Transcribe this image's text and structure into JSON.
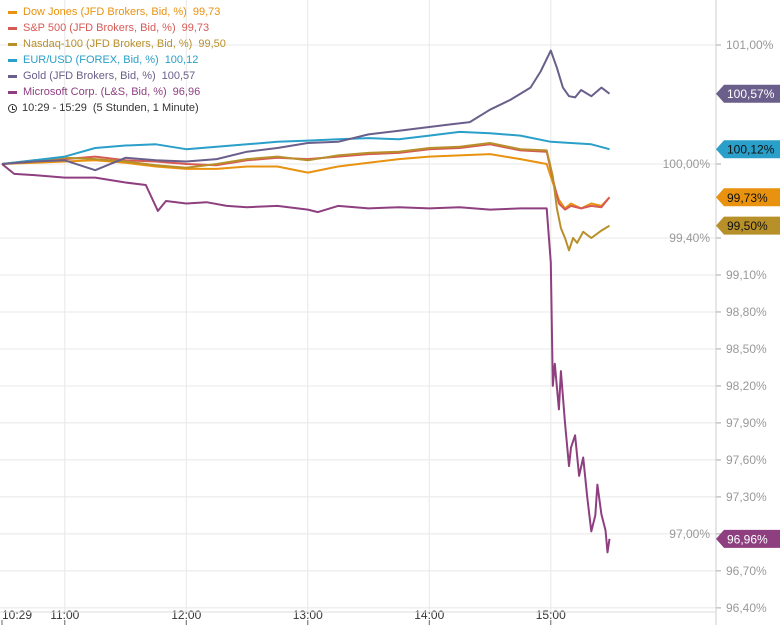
{
  "chart_data": {
    "type": "line",
    "xlabel": "",
    "ylabel": "",
    "x_ticks": [
      "10:29",
      "11:00",
      "12:00",
      "13:00",
      "14:00",
      "15:00"
    ],
    "y_ticks": [
      "101,00%",
      "100,00%",
      "99,40%",
      "99,10%",
      "98,80%",
      "98,50%",
      "98,20%",
      "97,90%",
      "97,60%",
      "97,30%",
      "97,00%",
      "96,70%",
      "96,40%"
    ],
    "ylim": [
      96.4,
      101.0
    ],
    "xlim": [
      "10:29",
      "15:29"
    ],
    "grid": true,
    "legend_position": "top-left",
    "time_range": "10:29 - 15:29",
    "duration": "(5 Stunden, 1 Minute)",
    "series": [
      {
        "name": "Dow Jones (JFD Brokers, Bid, %)",
        "last": "99,73",
        "tag": "99,73%",
        "color": "#e8920f",
        "x": [
          "10:29",
          "10:45",
          "11:00",
          "11:15",
          "11:30",
          "11:45",
          "12:00",
          "12:15",
          "12:30",
          "12:45",
          "13:00",
          "13:15",
          "13:30",
          "13:45",
          "14:00",
          "14:15",
          "14:30",
          "14:45",
          "14:58",
          "15:01",
          "15:04",
          "15:07",
          "15:10",
          "15:15",
          "15:20",
          "15:25",
          "15:29"
        ],
        "y": [
          100.0,
          100.01,
          100.02,
          100.03,
          100.01,
          99.98,
          99.96,
          99.96,
          99.98,
          99.98,
          99.93,
          99.98,
          100.01,
          100.04,
          100.06,
          100.07,
          100.08,
          100.04,
          100.0,
          99.85,
          99.71,
          99.64,
          99.68,
          99.64,
          99.68,
          99.66,
          99.73
        ]
      },
      {
        "name": "S&P 500 (JFD Brokers, Bid, %)",
        "last": "99,73",
        "tag": "",
        "color": "#d65a55",
        "x": [
          "10:29",
          "10:45",
          "11:00",
          "11:15",
          "11:30",
          "11:45",
          "12:00",
          "12:15",
          "12:30",
          "12:45",
          "13:00",
          "13:15",
          "13:30",
          "13:45",
          "14:00",
          "14:15",
          "14:30",
          "14:45",
          "14:58",
          "15:01",
          "15:04",
          "15:07",
          "15:10",
          "15:15",
          "15:20",
          "15:25",
          "15:29"
        ],
        "y": [
          100.0,
          100.02,
          100.04,
          100.06,
          100.03,
          100.02,
          100.0,
          99.99,
          100.03,
          100.05,
          100.04,
          100.06,
          100.08,
          100.09,
          100.12,
          100.13,
          100.16,
          100.11,
          100.1,
          99.88,
          99.68,
          99.63,
          99.66,
          99.64,
          99.66,
          99.65,
          99.73
        ]
      },
      {
        "name": "Nasdaq-100 (JFD Brokers, Bid, %)",
        "last": "99,50",
        "tag": "99,50%",
        "color": "#b8902a",
        "x": [
          "10:29",
          "10:45",
          "11:00",
          "11:15",
          "11:30",
          "11:45",
          "12:00",
          "12:15",
          "12:30",
          "12:45",
          "13:00",
          "13:15",
          "13:30",
          "13:45",
          "14:00",
          "14:15",
          "14:30",
          "14:45",
          "14:58",
          "15:01",
          "15:03",
          "15:05",
          "15:07",
          "15:09",
          "15:11",
          "15:13",
          "15:16",
          "15:20",
          "15:25",
          "15:29"
        ],
        "y": [
          100.0,
          100.03,
          100.05,
          100.04,
          100.02,
          99.99,
          99.97,
          100.0,
          100.04,
          100.06,
          100.03,
          100.07,
          100.09,
          100.1,
          100.13,
          100.14,
          100.17,
          100.12,
          100.11,
          99.9,
          99.64,
          99.48,
          99.4,
          99.3,
          99.4,
          99.36,
          99.45,
          99.4,
          99.46,
          99.5
        ]
      },
      {
        "name": "EUR/USD (FOREX, Bid, %)",
        "last": "100,12",
        "tag": "100,12%",
        "color": "#2a9fc9",
        "x": [
          "10:29",
          "10:45",
          "11:00",
          "11:15",
          "11:30",
          "11:45",
          "12:00",
          "12:15",
          "12:30",
          "12:45",
          "13:00",
          "13:15",
          "13:30",
          "13:45",
          "14:00",
          "14:15",
          "14:30",
          "14:45",
          "15:00",
          "15:10",
          "15:20",
          "15:29"
        ],
        "y": [
          100.0,
          100.03,
          100.06,
          100.13,
          100.15,
          100.16,
          100.12,
          100.14,
          100.16,
          100.18,
          100.19,
          100.2,
          100.21,
          100.2,
          100.23,
          100.26,
          100.25,
          100.23,
          100.18,
          100.17,
          100.16,
          100.12
        ]
      },
      {
        "name": "Gold (JFD Brokers, Bid, %)",
        "last": "100,57",
        "tag": "100,57%",
        "color": "#6a5f8a",
        "x": [
          "10:29",
          "10:45",
          "11:00",
          "11:15",
          "11:30",
          "11:45",
          "12:00",
          "12:15",
          "12:30",
          "12:45",
          "13:00",
          "13:15",
          "13:30",
          "13:45",
          "14:00",
          "14:10",
          "14:20",
          "14:30",
          "14:40",
          "14:50",
          "14:55",
          "15:00",
          "15:03",
          "15:06",
          "15:09",
          "15:12",
          "15:15",
          "15:20",
          "15:25",
          "15:29"
        ],
        "y": [
          100.0,
          100.02,
          100.03,
          99.95,
          100.05,
          100.03,
          100.02,
          100.04,
          100.1,
          100.13,
          100.17,
          100.18,
          100.24,
          100.27,
          100.3,
          100.32,
          100.34,
          100.44,
          100.52,
          100.62,
          100.75,
          100.92,
          100.78,
          100.62,
          100.55,
          100.54,
          100.6,
          100.55,
          100.62,
          100.57
        ]
      },
      {
        "name": "Microsoft Corp. (L&S, Bid, %)",
        "last": "96,96",
        "tag": "96,96%",
        "color": "#8e3f80",
        "x": [
          "10:29",
          "10:35",
          "10:45",
          "11:00",
          "11:15",
          "11:30",
          "11:40",
          "11:46",
          "11:50",
          "12:00",
          "12:10",
          "12:20",
          "12:30",
          "12:45",
          "13:00",
          "13:05",
          "13:15",
          "13:30",
          "13:45",
          "14:00",
          "14:15",
          "14:30",
          "14:45",
          "14:58",
          "15:00",
          "15:01",
          "15:02",
          "15:04",
          "15:05",
          "15:07",
          "15:09",
          "15:10",
          "15:12",
          "15:14",
          "15:16",
          "15:18",
          "15:20",
          "15:22",
          "15:23",
          "15:25",
          "15:27",
          "15:28",
          "15:29"
        ],
        "y": [
          100.0,
          99.92,
          99.91,
          99.89,
          99.89,
          99.85,
          99.83,
          99.62,
          99.7,
          99.68,
          99.69,
          99.66,
          99.65,
          99.66,
          99.63,
          99.61,
          99.66,
          99.64,
          99.65,
          99.64,
          99.65,
          99.63,
          99.64,
          99.64,
          99.2,
          98.2,
          98.38,
          98.01,
          98.32,
          97.9,
          97.55,
          97.7,
          97.8,
          97.47,
          97.62,
          97.3,
          97.02,
          97.15,
          97.4,
          97.16,
          97.03,
          96.85,
          96.96
        ]
      }
    ]
  }
}
